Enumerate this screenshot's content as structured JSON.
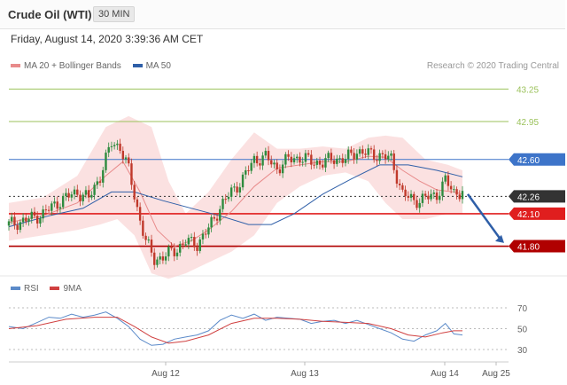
{
  "header": {
    "instrument": "Crude Oil (WTI)",
    "timeframe": "30 MIN"
  },
  "timestamp": "Friday, August 14, 2020 3:39:36 AM CET",
  "legend": [
    {
      "label": "MA 20 + Bollinger Bands",
      "color": "#e88b8b"
    },
    {
      "label": "MA 50",
      "color": "#2f5fa8"
    }
  ],
  "credit": "Research © 2020 Trading Central",
  "rsi_legend": [
    {
      "label": "RSI",
      "color": "#5b8ac9"
    },
    {
      "label": "9MA",
      "color": "#d04040"
    }
  ],
  "chart_data": {
    "type": "candlestick",
    "instrument": "Crude Oil (WTI)",
    "timeframe": "30 MIN",
    "price_axis": {
      "min": 41.6,
      "max": 43.4
    },
    "x_labels": [
      "Aug 12",
      "Aug 13",
      "Aug 14",
      "Aug 25"
    ],
    "levels": [
      {
        "label": "43.25",
        "value": 43.25,
        "color": "#9bc25b",
        "style": "solid",
        "kind": "text"
      },
      {
        "label": "42.95",
        "value": 42.95,
        "color": "#9bc25b",
        "style": "solid",
        "kind": "text"
      },
      {
        "label": "42.60",
        "value": 42.6,
        "color": "#3d74c9",
        "style": "solid",
        "kind": "box"
      },
      {
        "label": "42.26",
        "value": 42.26,
        "color": "#333333",
        "style": "dotted",
        "kind": "box"
      },
      {
        "label": "42.10",
        "value": 42.1,
        "color": "#e01e1e",
        "style": "solid",
        "kind": "box"
      },
      {
        "label": "41.80",
        "value": 41.8,
        "color": "#b00000",
        "style": "solid",
        "kind": "box"
      }
    ],
    "close_path": [
      [
        0,
        42.0
      ],
      [
        6,
        42.04
      ],
      [
        12,
        42.1
      ],
      [
        18,
        42.22
      ],
      [
        24,
        42.3
      ],
      [
        28,
        42.24
      ],
      [
        32,
        42.45
      ],
      [
        36,
        42.75
      ],
      [
        39,
        42.72
      ],
      [
        42,
        42.5
      ],
      [
        45,
        42.15
      ],
      [
        48,
        41.84
      ],
      [
        51,
        41.68
      ],
      [
        54,
        41.7
      ],
      [
        58,
        41.76
      ],
      [
        62,
        41.84
      ],
      [
        66,
        41.82
      ],
      [
        70,
        41.96
      ],
      [
        74,
        42.16
      ],
      [
        78,
        42.3
      ],
      [
        82,
        42.42
      ],
      [
        86,
        42.6
      ],
      [
        90,
        42.62
      ],
      [
        94,
        42.52
      ],
      [
        98,
        42.6
      ],
      [
        102,
        42.62
      ],
      [
        106,
        42.58
      ],
      [
        110,
        42.57
      ],
      [
        114,
        42.61
      ],
      [
        118,
        42.6
      ],
      [
        122,
        42.68
      ],
      [
        126,
        42.65
      ],
      [
        130,
        42.64
      ],
      [
        134,
        42.6
      ],
      [
        136,
        42.45
      ],
      [
        138,
        42.28
      ],
      [
        142,
        42.22
      ],
      [
        146,
        42.24
      ],
      [
        150,
        42.28
      ],
      [
        153,
        42.4
      ],
      [
        156,
        42.3
      ],
      [
        159,
        42.3
      ]
    ],
    "ma20_path": [
      [
        0,
        42.02
      ],
      [
        12,
        42.08
      ],
      [
        24,
        42.2
      ],
      [
        34,
        42.45
      ],
      [
        40,
        42.58
      ],
      [
        46,
        42.3
      ],
      [
        52,
        41.95
      ],
      [
        58,
        41.8
      ],
      [
        64,
        41.85
      ],
      [
        70,
        41.95
      ],
      [
        78,
        42.12
      ],
      [
        86,
        42.35
      ],
      [
        94,
        42.52
      ],
      [
        102,
        42.55
      ],
      [
        110,
        42.58
      ],
      [
        118,
        42.58
      ],
      [
        126,
        42.63
      ],
      [
        132,
        42.62
      ],
      [
        138,
        42.5
      ],
      [
        144,
        42.4
      ],
      [
        150,
        42.32
      ],
      [
        156,
        42.3
      ],
      [
        159,
        42.28
      ]
    ],
    "ma50_path": [
      [
        0,
        41.98
      ],
      [
        14,
        42.08
      ],
      [
        26,
        42.15
      ],
      [
        36,
        42.3
      ],
      [
        44,
        42.3
      ],
      [
        54,
        42.22
      ],
      [
        64,
        42.15
      ],
      [
        74,
        42.08
      ],
      [
        84,
        42.0
      ],
      [
        92,
        42.0
      ],
      [
        100,
        42.1
      ],
      [
        110,
        42.28
      ],
      [
        120,
        42.42
      ],
      [
        130,
        42.55
      ],
      [
        140,
        42.55
      ],
      [
        150,
        42.5
      ],
      [
        159,
        42.44
      ]
    ],
    "bollinger_upper": [
      [
        0,
        42.2
      ],
      [
        12,
        42.25
      ],
      [
        24,
        42.45
      ],
      [
        34,
        42.9
      ],
      [
        42,
        43.0
      ],
      [
        50,
        42.9
      ],
      [
        56,
        42.4
      ],
      [
        62,
        42.1
      ],
      [
        70,
        42.3
      ],
      [
        78,
        42.6
      ],
      [
        86,
        42.85
      ],
      [
        94,
        42.7
      ],
      [
        102,
        42.7
      ],
      [
        110,
        42.72
      ],
      [
        118,
        42.7
      ],
      [
        126,
        42.8
      ],
      [
        132,
        42.82
      ],
      [
        138,
        42.8
      ],
      [
        146,
        42.6
      ],
      [
        154,
        42.55
      ],
      [
        159,
        42.5
      ]
    ],
    "bollinger_lower": [
      [
        0,
        41.85
      ],
      [
        12,
        41.9
      ],
      [
        24,
        41.95
      ],
      [
        32,
        42.0
      ],
      [
        38,
        42.05
      ],
      [
        44,
        41.9
      ],
      [
        50,
        41.55
      ],
      [
        56,
        41.5
      ],
      [
        62,
        41.55
      ],
      [
        70,
        41.65
      ],
      [
        78,
        41.75
      ],
      [
        86,
        41.9
      ],
      [
        94,
        42.2
      ],
      [
        102,
        42.35
      ],
      [
        110,
        42.45
      ],
      [
        118,
        42.48
      ],
      [
        126,
        42.4
      ],
      [
        132,
        42.2
      ],
      [
        138,
        42.05
      ],
      [
        146,
        42.05
      ],
      [
        154,
        42.1
      ],
      [
        159,
        42.1
      ]
    ],
    "forecast_arrow": {
      "from": 42.28,
      "to": 41.83
    },
    "rsi": {
      "levels": [
        70,
        50,
        30
      ],
      "rsi_path": [
        [
          0,
          52
        ],
        [
          5,
          50
        ],
        [
          10,
          56
        ],
        [
          14,
          61
        ],
        [
          18,
          60
        ],
        [
          22,
          64
        ],
        [
          26,
          61
        ],
        [
          30,
          63
        ],
        [
          34,
          66
        ],
        [
          38,
          60
        ],
        [
          42,
          52
        ],
        [
          46,
          40
        ],
        [
          50,
          34
        ],
        [
          54,
          35
        ],
        [
          58,
          40
        ],
        [
          62,
          42
        ],
        [
          66,
          44
        ],
        [
          70,
          48
        ],
        [
          74,
          58
        ],
        [
          78,
          63
        ],
        [
          82,
          60
        ],
        [
          86,
          64
        ],
        [
          90,
          58
        ],
        [
          94,
          61
        ],
        [
          98,
          60
        ],
        [
          102,
          59
        ],
        [
          106,
          55
        ],
        [
          110,
          57
        ],
        [
          114,
          58
        ],
        [
          118,
          55
        ],
        [
          122,
          58
        ],
        [
          126,
          54
        ],
        [
          130,
          50
        ],
        [
          134,
          46
        ],
        [
          138,
          40
        ],
        [
          142,
          38
        ],
        [
          146,
          44
        ],
        [
          150,
          48
        ],
        [
          153,
          55
        ],
        [
          156,
          45
        ],
        [
          159,
          44
        ]
      ],
      "ma9_path": [
        [
          0,
          50
        ],
        [
          10,
          53
        ],
        [
          20,
          59
        ],
        [
          30,
          61
        ],
        [
          38,
          61
        ],
        [
          44,
          52
        ],
        [
          50,
          42
        ],
        [
          56,
          36
        ],
        [
          62,
          38
        ],
        [
          70,
          44
        ],
        [
          78,
          55
        ],
        [
          86,
          60
        ],
        [
          94,
          60
        ],
        [
          102,
          59
        ],
        [
          110,
          57
        ],
        [
          118,
          56
        ],
        [
          126,
          55
        ],
        [
          134,
          50
        ],
        [
          140,
          44
        ],
        [
          146,
          42
        ],
        [
          152,
          46
        ],
        [
          156,
          48
        ],
        [
          159,
          48
        ]
      ]
    }
  }
}
